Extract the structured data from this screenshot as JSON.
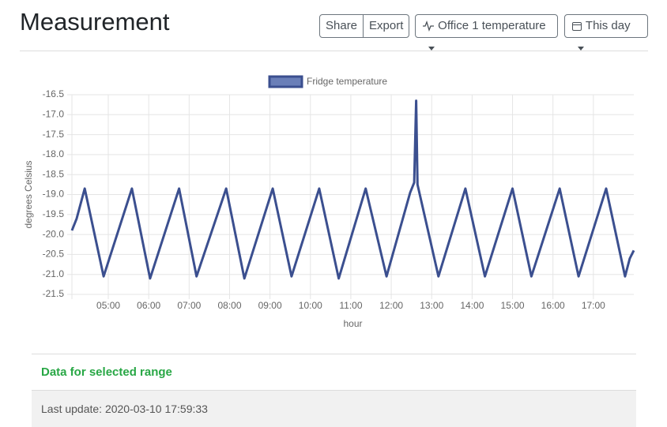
{
  "header": {
    "title": "Measurement",
    "buttons": [
      "Share",
      "Export"
    ],
    "sensor": "Office 1 temperature",
    "range": "This day"
  },
  "chart_data": {
    "type": "line",
    "x_label": "hour",
    "y_label": "degrees Celsius",
    "x": [
      "04:06",
      "04:13",
      "04:25",
      "04:53",
      "05:35",
      "06:02",
      "06:45",
      "07:11",
      "07:55",
      "08:22",
      "09:04",
      "09:32",
      "10:13",
      "10:42",
      "11:22",
      "11:53",
      "12:28",
      "12:34",
      "12:37",
      "12:39",
      "13:10",
      "13:50",
      "14:19",
      "15:00",
      "15:28",
      "16:10",
      "16:38",
      "17:19",
      "17:47",
      "17:54",
      "18:00"
    ],
    "series": [
      {
        "name": "Fridge temperature",
        "color": "#3b4f8f",
        "values": [
          -19.9,
          -19.6,
          -18.85,
          -21.05,
          -18.85,
          -21.1,
          -18.85,
          -21.05,
          -18.85,
          -21.1,
          -18.85,
          -21.05,
          -18.85,
          -21.1,
          -18.85,
          -21.05,
          -18.95,
          -18.7,
          -16.65,
          -18.75,
          -21.05,
          -18.85,
          -21.05,
          -18.85,
          -21.05,
          -18.85,
          -21.05,
          -18.85,
          -21.05,
          -20.6,
          -20.4
        ]
      }
    ],
    "xlim": [
      "04:06",
      "18:00"
    ],
    "xticks": [
      "05:00",
      "06:00",
      "07:00",
      "08:00",
      "09:00",
      "10:00",
      "11:00",
      "12:00",
      "13:00",
      "14:00",
      "15:00",
      "16:00",
      "17:00"
    ],
    "ylim": [
      -21.5,
      -16.5
    ],
    "yticks": [
      -16.5,
      {
        "value": -17,
        "label": "-17.0"
      },
      -17.5,
      {
        "value": -18,
        "label": "-18.0"
      },
      -18.5,
      {
        "value": -19,
        "label": "-19.0"
      },
      -19.5,
      {
        "value": -20,
        "label": "-20.0"
      },
      -20.5,
      {
        "value": -21,
        "label": "-21.0"
      },
      -21.5
    ],
    "grid": true
  },
  "footer": {
    "heading": "Data for selected range",
    "last_update": "Last update: 2020-03-10 17:59:33"
  }
}
